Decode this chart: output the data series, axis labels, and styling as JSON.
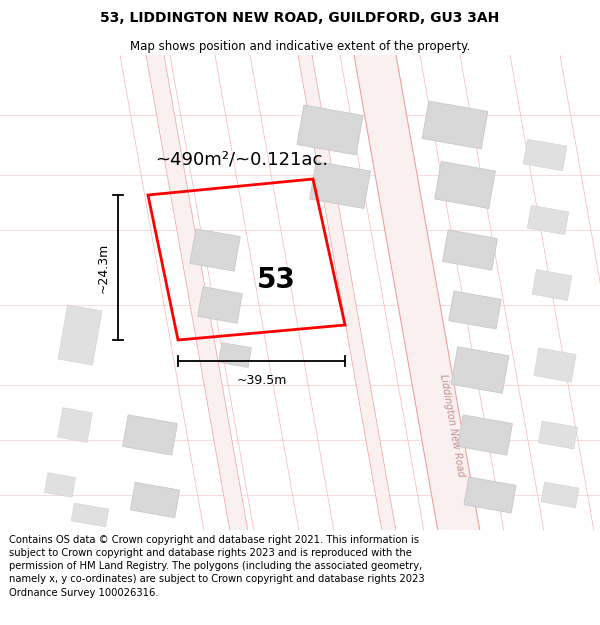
{
  "title": "53, LIDDINGTON NEW ROAD, GUILDFORD, GU3 3AH",
  "subtitle": "Map shows position and indicative extent of the property.",
  "area_label": "~490m²/~0.121ac.",
  "number_label": "53",
  "width_label": "~39.5m",
  "height_label": "~24.3m",
  "road_label": "Liddington New Road",
  "footer_text": "Contains OS data © Crown copyright and database right 2021. This information is subject to Crown copyright and database rights 2023 and is reproduced with the permission of HM Land Registry. The polygons (including the associated geometry, namely x, y co-ordinates) are subject to Crown copyright and database rights 2023 Ordnance Survey 100026316.",
  "bg_color": "#ffffff",
  "map_bg": "#ffffff",
  "plot_color": "#ff0000",
  "road_fill": "#fdf0f0",
  "road_edge": "#f0a0a0",
  "building_fill": "#d8d8d8",
  "building_edge": "#cccccc",
  "street_line": "#f5b8b8",
  "title_fontsize": 10,
  "subtitle_fontsize": 8.5,
  "footer_fontsize": 7.2,
  "area_fontsize": 13,
  "number_fontsize": 20,
  "dim_fontsize": 9,
  "road_label_fontsize": 7
}
